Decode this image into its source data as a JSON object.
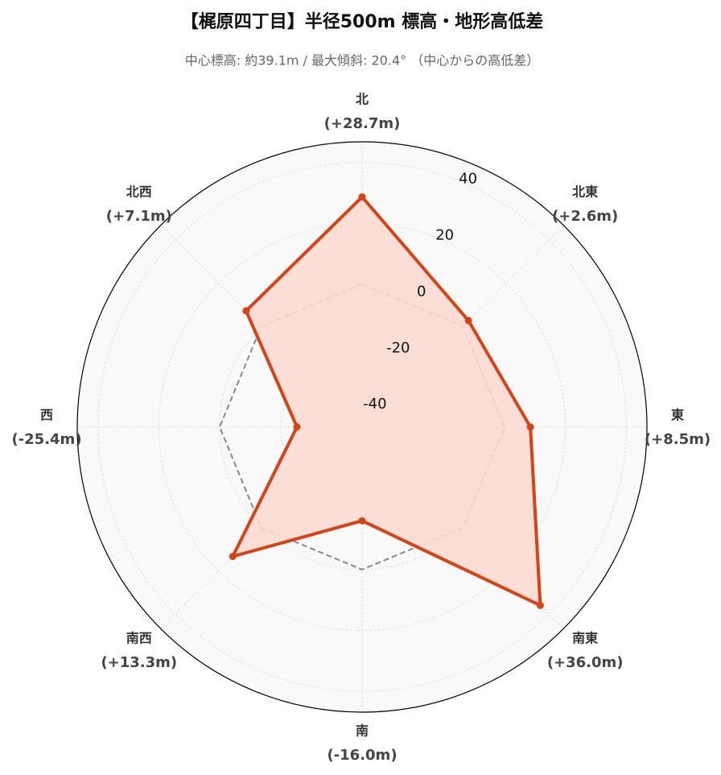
{
  "chart_data": {
    "type": "radar",
    "title": "【梶原四丁目】半径500m 標高・地形高低差",
    "subtitle": "中心標高: 約39.1m / 最大傾斜: 20.4° （中心からの高低差）",
    "categories": [
      "北",
      "北東",
      "東",
      "南東",
      "南",
      "南西",
      "西",
      "北西"
    ],
    "values": [
      28.7,
      2.6,
      8.5,
      36.0,
      -16.0,
      13.3,
      -25.4,
      7.1
    ],
    "value_labels": [
      "(+28.7m)",
      "(+2.6m)",
      "(+8.5m)",
      "(+36.0m)",
      "(-16.0m)",
      "(+13.3m)",
      "(-25.4m)",
      "(+7.1m)"
    ],
    "color": "#d84315",
    "fill_color": "#fbdcd3",
    "reference_value": 0,
    "ylim": [
      -46.8,
      46.8
    ],
    "yticks": [
      -40,
      -20,
      0,
      20,
      40
    ],
    "grid": true
  }
}
